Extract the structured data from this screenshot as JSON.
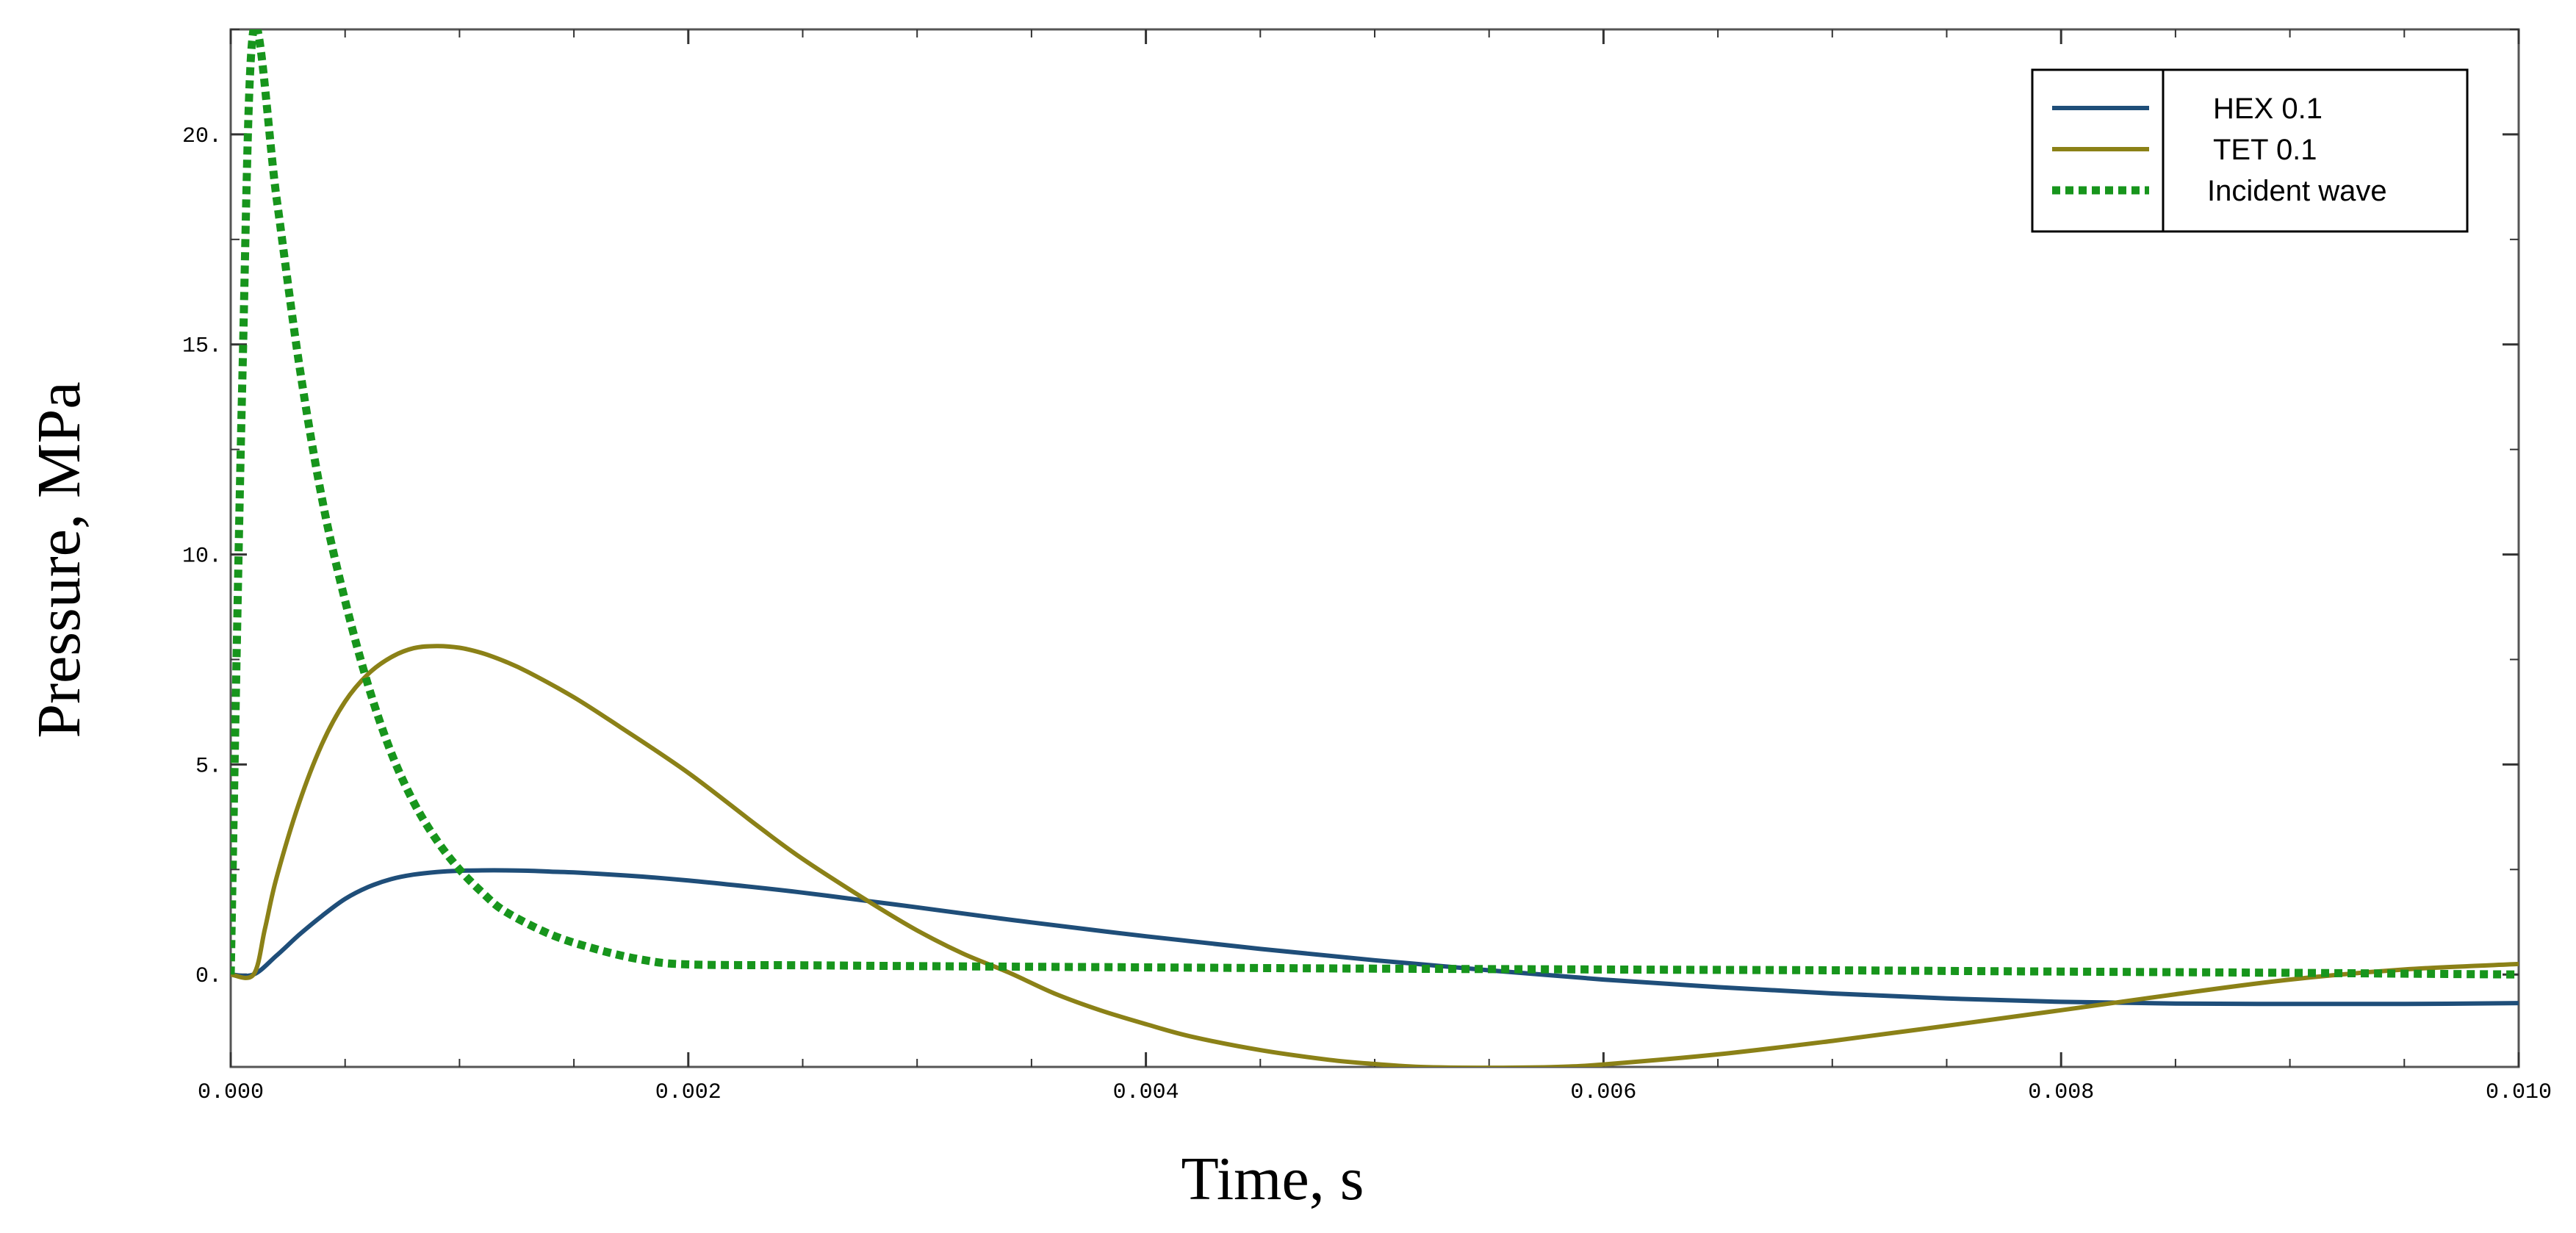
{
  "chart_data": {
    "type": "line",
    "title": "",
    "xlabel": "Time, s",
    "ylabel": "Pressure, MPa",
    "xlim": [
      0,
      0.01
    ],
    "ylim": [
      -2.2,
      22.5
    ],
    "x_ticks": [
      0.0,
      0.002,
      0.004,
      0.006,
      0.008,
      0.01
    ],
    "x_tick_labels": [
      "0.000",
      "0.002",
      "0.004",
      "0.006",
      "0.008",
      "0.010"
    ],
    "y_ticks": [
      0,
      5,
      10,
      15,
      20
    ],
    "y_tick_labels": [
      "0.",
      "5.",
      "10.",
      "15.",
      "20."
    ],
    "grid": false,
    "legend_position": "top-right",
    "series": [
      {
        "name": "HEX 0.1",
        "color": "#1f4e79",
        "style": "solid",
        "x": [
          0,
          0.0001,
          0.0002,
          0.0003,
          0.0004,
          0.0005,
          0.0006,
          0.0007,
          0.0008,
          0.0009,
          0.001,
          0.0011,
          0.0012,
          0.0013,
          0.0014,
          0.0015,
          0.0016,
          0.0018,
          0.002,
          0.0022,
          0.0025,
          0.0028,
          0.003,
          0.0033,
          0.0035,
          0.004,
          0.0045,
          0.005,
          0.0055,
          0.006,
          0.0065,
          0.007,
          0.0075,
          0.008,
          0.0085,
          0.009,
          0.0095,
          0.01
        ],
        "y": [
          0,
          0,
          0.45,
          0.95,
          1.4,
          1.8,
          2.08,
          2.27,
          2.38,
          2.44,
          2.47,
          2.48,
          2.48,
          2.47,
          2.45,
          2.43,
          2.4,
          2.33,
          2.24,
          2.13,
          1.95,
          1.74,
          1.6,
          1.38,
          1.24,
          0.91,
          0.61,
          0.34,
          0.1,
          -0.12,
          -0.3,
          -0.45,
          -0.57,
          -0.65,
          -0.69,
          -0.7,
          -0.7,
          -0.68
        ]
      },
      {
        "name": "TET 0.1",
        "color": "#8b8117",
        "style": "solid",
        "x": [
          0,
          0.0001,
          0.00015,
          0.0002,
          0.0003,
          0.0004,
          0.0005,
          0.0006,
          0.0007,
          0.0008,
          0.0009,
          0.001,
          0.0011,
          0.0012,
          0.0013,
          0.0015,
          0.0017,
          0.002,
          0.0023,
          0.0025,
          0.0028,
          0.003,
          0.0032,
          0.0034,
          0.0036,
          0.0038,
          0.004,
          0.0042,
          0.0045,
          0.0048,
          0.005,
          0.0052,
          0.0055,
          0.0058,
          0.006,
          0.0065,
          0.007,
          0.0075,
          0.008,
          0.0085,
          0.009,
          0.0095,
          0.01
        ],
        "y": [
          0,
          0,
          1.1,
          2.3,
          4.1,
          5.5,
          6.5,
          7.15,
          7.55,
          7.77,
          7.82,
          7.78,
          7.65,
          7.45,
          7.2,
          6.6,
          5.9,
          4.8,
          3.55,
          2.75,
          1.7,
          1.05,
          0.5,
          0.05,
          -0.45,
          -0.85,
          -1.18,
          -1.48,
          -1.8,
          -2.03,
          -2.13,
          -2.2,
          -2.22,
          -2.2,
          -2.14,
          -1.9,
          -1.58,
          -1.22,
          -0.85,
          -0.47,
          -0.12,
          0.12,
          0.25
        ]
      },
      {
        "name": "Incident wave",
        "color": "#17951c",
        "style": "dotted",
        "x": [
          0,
          5e-05,
          0.0001,
          0.0002,
          0.0003,
          0.0004,
          0.0005,
          0.0006,
          0.0007,
          0.0008,
          0.0009,
          0.001,
          0.0011,
          0.0012,
          0.0014,
          0.0016,
          0.0018,
          0.002,
          0.0025,
          0.003,
          0.004,
          0.005,
          0.006,
          0.007,
          0.008,
          0.009,
          0.01
        ],
        "y": [
          0,
          14,
          22.5,
          18.5,
          14.5,
          11.3,
          8.9,
          6.9,
          5.3,
          4.1,
          3.2,
          2.5,
          1.95,
          1.5,
          0.95,
          0.6,
          0.35,
          0.24,
          0.22,
          0.2,
          0.17,
          0.14,
          0.12,
          0.1,
          0.07,
          0.04,
          0.0
        ]
      }
    ]
  }
}
